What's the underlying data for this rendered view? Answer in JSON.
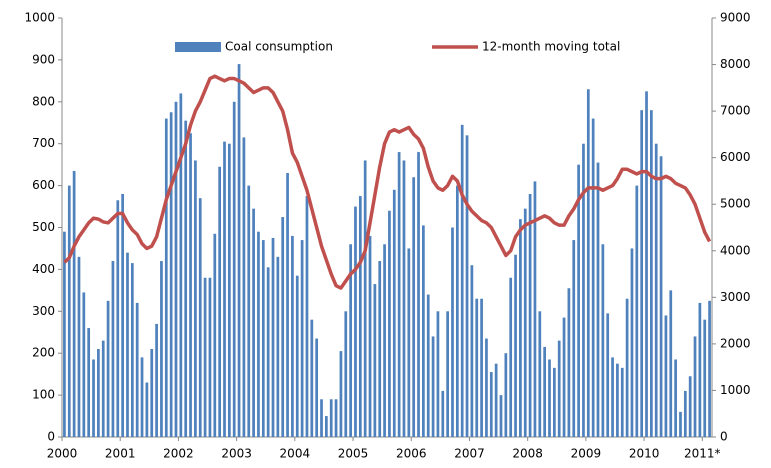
{
  "chart_data": {
    "type": "bar",
    "categories": [
      "2000",
      null,
      null,
      null,
      null,
      null,
      null,
      null,
      null,
      null,
      null,
      null,
      "2001",
      null,
      null,
      null,
      null,
      null,
      null,
      null,
      null,
      null,
      null,
      null,
      "2002",
      null,
      null,
      null,
      null,
      null,
      null,
      null,
      null,
      null,
      null,
      null,
      "2003",
      null,
      null,
      null,
      null,
      null,
      null,
      null,
      null,
      null,
      null,
      null,
      "2004",
      null,
      null,
      null,
      null,
      null,
      null,
      null,
      null,
      null,
      null,
      null,
      "2005",
      null,
      null,
      null,
      null,
      null,
      null,
      null,
      null,
      null,
      null,
      null,
      "2006",
      null,
      null,
      null,
      null,
      null,
      null,
      null,
      null,
      null,
      null,
      null,
      "2007",
      null,
      null,
      null,
      null,
      null,
      null,
      null,
      null,
      null,
      null,
      null,
      "2008",
      null,
      null,
      null,
      null,
      null,
      null,
      null,
      null,
      null,
      null,
      null,
      "2009",
      null,
      null,
      null,
      null,
      null,
      null,
      null,
      null,
      null,
      null,
      null,
      "2010",
      null,
      null,
      null,
      null,
      null,
      null,
      null,
      null,
      null,
      null,
      null,
      "2011*",
      null
    ],
    "series": [
      {
        "name": "Coal consumption",
        "type": "bar",
        "color": "#4f81bd",
        "values": [
          490,
          600,
          635,
          430,
          345,
          260,
          185,
          210,
          230,
          325,
          420,
          565,
          580,
          440,
          415,
          320,
          190,
          130,
          210,
          270,
          420,
          760,
          775,
          800,
          820,
          755,
          725,
          660,
          570,
          380,
          380,
          485,
          645,
          705,
          700,
          800,
          890,
          715,
          600,
          545,
          490,
          470,
          405,
          475,
          430,
          525,
          630,
          480,
          385,
          470,
          575,
          280,
          235,
          90,
          50,
          90,
          90,
          205,
          300,
          460,
          550,
          575,
          660,
          480,
          365,
          420,
          460,
          540,
          590,
          680,
          660,
          450,
          620,
          680,
          505,
          340,
          240,
          300,
          110,
          300,
          500,
          600,
          745,
          720,
          410,
          330,
          330,
          235,
          155,
          175,
          100,
          200,
          380,
          435,
          520,
          545,
          580,
          610,
          300,
          215,
          185,
          165,
          230,
          285,
          355,
          470,
          650,
          700,
          830,
          760,
          655,
          460,
          295,
          190,
          175,
          165,
          330,
          450,
          600,
          780,
          825,
          780,
          700,
          670,
          290,
          350,
          185,
          60,
          110,
          145,
          240,
          320,
          280,
          325
        ]
      },
      {
        "name": "12-month moving total",
        "type": "line",
        "axis": "y2",
        "color": "#c0504d",
        "values": [
          3750,
          3850,
          4100,
          4300,
          4450,
          4600,
          4700,
          4680,
          4620,
          4600,
          4700,
          4800,
          4800,
          4600,
          4450,
          4350,
          4150,
          4050,
          4100,
          4300,
          4700,
          5100,
          5400,
          5700,
          6000,
          6300,
          6700,
          7000,
          7200,
          7450,
          7700,
          7750,
          7700,
          7650,
          7700,
          7700,
          7650,
          7600,
          7500,
          7400,
          7450,
          7500,
          7500,
          7400,
          7200,
          7000,
          6600,
          6100,
          5900,
          5600,
          5300,
          4900,
          4500,
          4100,
          3800,
          3500,
          3250,
          3200,
          3350,
          3500,
          3600,
          3750,
          4000,
          4600,
          5200,
          5800,
          6300,
          6550,
          6600,
          6550,
          6600,
          6650,
          6500,
          6400,
          6200,
          5800,
          5500,
          5350,
          5300,
          5400,
          5600,
          5500,
          5200,
          5000,
          4850,
          4750,
          4650,
          4600,
          4500,
          4300,
          4100,
          3900,
          4000,
          4300,
          4450,
          4550,
          4600,
          4650,
          4700,
          4750,
          4700,
          4600,
          4550,
          4550,
          4750,
          4900,
          5100,
          5250,
          5350,
          5350,
          5350,
          5300,
          5350,
          5400,
          5550,
          5750,
          5750,
          5700,
          5650,
          5700,
          5700,
          5600,
          5550,
          5550,
          5600,
          5550,
          5450,
          5400,
          5350,
          5200,
          5000,
          4700,
          4400,
          4200
        ]
      }
    ],
    "ylim": [
      0,
      1000
    ],
    "yticks": [
      0,
      100,
      200,
      300,
      400,
      500,
      600,
      700,
      800,
      900,
      1000
    ],
    "y2lim": [
      0,
      9000
    ],
    "y2ticks": [
      0,
      1000,
      2000,
      3000,
      4000,
      5000,
      6000,
      7000,
      8000,
      9000
    ],
    "grid": false,
    "legend": "top"
  }
}
